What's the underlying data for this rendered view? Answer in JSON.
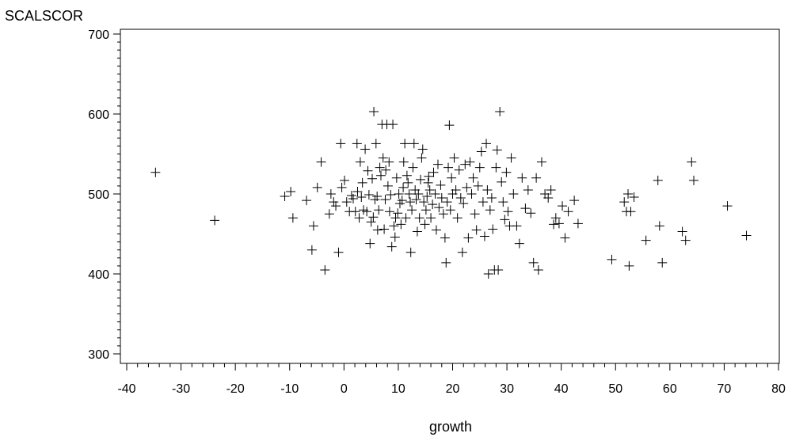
{
  "chart_data": {
    "type": "scatter",
    "title": "",
    "xlabel": "growth",
    "ylabel": "SCALSCOR",
    "xlim": [
      -40,
      80
    ],
    "ylim": [
      300,
      700
    ],
    "x_ticks": [
      -40,
      -30,
      -20,
      -10,
      0,
      10,
      20,
      30,
      40,
      50,
      60,
      70,
      80
    ],
    "y_ticks": [
      300,
      400,
      500,
      600,
      700
    ],
    "marker": "plus",
    "grid": false,
    "legend": "none",
    "points": [
      [
        -34.7,
        527
      ],
      [
        -23.8,
        467
      ],
      [
        -10.9,
        497
      ],
      [
        -9.8,
        503
      ],
      [
        -9.4,
        470
      ],
      [
        -6.9,
        492
      ],
      [
        -5.9,
        430
      ],
      [
        -5.6,
        460
      ],
      [
        -4.9,
        508
      ],
      [
        -4.2,
        540
      ],
      [
        -3.5,
        405
      ],
      [
        -2.7,
        475
      ],
      [
        -2.4,
        500
      ],
      [
        -1.9,
        490
      ],
      [
        -1.5,
        485
      ],
      [
        -1.0,
        427
      ],
      [
        -0.6,
        563
      ],
      [
        -0.4,
        508
      ],
      [
        0.1,
        517
      ],
      [
        0.5,
        490
      ],
      [
        1.0,
        478
      ],
      [
        1.4,
        498
      ],
      [
        1.7,
        494
      ],
      [
        2.1,
        478
      ],
      [
        2.4,
        563
      ],
      [
        2.5,
        503
      ],
      [
        2.8,
        470
      ],
      [
        3.0,
        540
      ],
      [
        3.2,
        496
      ],
      [
        3.4,
        514
      ],
      [
        3.6,
        480
      ],
      [
        3.9,
        556
      ],
      [
        4.2,
        478
      ],
      [
        4.4,
        529
      ],
      [
        4.6,
        499
      ],
      [
        4.8,
        438
      ],
      [
        5.0,
        465
      ],
      [
        5.2,
        519
      ],
      [
        5.4,
        471
      ],
      [
        5.5,
        603
      ],
      [
        5.7,
        493
      ],
      [
        5.9,
        563
      ],
      [
        6.1,
        497
      ],
      [
        6.2,
        455
      ],
      [
        6.4,
        480
      ],
      [
        6.6,
        533
      ],
      [
        6.8,
        523
      ],
      [
        7.0,
        587
      ],
      [
        7.2,
        545
      ],
      [
        7.4,
        456
      ],
      [
        7.6,
        493
      ],
      [
        7.7,
        530
      ],
      [
        7.9,
        587
      ],
      [
        8.1,
        510
      ],
      [
        8.3,
        540
      ],
      [
        8.4,
        478
      ],
      [
        8.6,
        499
      ],
      [
        8.8,
        434
      ],
      [
        9.0,
        587
      ],
      [
        9.2,
        460
      ],
      [
        9.4,
        446
      ],
      [
        9.5,
        470
      ],
      [
        9.7,
        520
      ],
      [
        9.9,
        476
      ],
      [
        10.1,
        500
      ],
      [
        10.3,
        488
      ],
      [
        10.5,
        462
      ],
      [
        10.7,
        492
      ],
      [
        10.9,
        508
      ],
      [
        11.0,
        540
      ],
      [
        11.2,
        563
      ],
      [
        11.4,
        470
      ],
      [
        11.6,
        523
      ],
      [
        11.8,
        514
      ],
      [
        12.0,
        500
      ],
      [
        12.2,
        490
      ],
      [
        12.3,
        427
      ],
      [
        12.5,
        480
      ],
      [
        12.7,
        533
      ],
      [
        12.9,
        563
      ],
      [
        13.1,
        505
      ],
      [
        13.3,
        493
      ],
      [
        13.5,
        453
      ],
      [
        13.7,
        500
      ],
      [
        13.9,
        470
      ],
      [
        14.1,
        518
      ],
      [
        14.3,
        545
      ],
      [
        14.5,
        556
      ],
      [
        14.7,
        490
      ],
      [
        14.9,
        462
      ],
      [
        15.1,
        480
      ],
      [
        15.3,
        497
      ],
      [
        15.5,
        514
      ],
      [
        15.6,
        522
      ],
      [
        15.8,
        505
      ],
      [
        16.0,
        470
      ],
      [
        16.3,
        487
      ],
      [
        16.5,
        527
      ],
      [
        16.8,
        500
      ],
      [
        17.0,
        455
      ],
      [
        17.3,
        537
      ],
      [
        17.5,
        483
      ],
      [
        17.8,
        511
      ],
      [
        18.0,
        495
      ],
      [
        18.3,
        475
      ],
      [
        18.6,
        445
      ],
      [
        18.8,
        414
      ],
      [
        19.0,
        490
      ],
      [
        19.2,
        533
      ],
      [
        19.4,
        586
      ],
      [
        19.6,
        480
      ],
      [
        19.8,
        520
      ],
      [
        20.0,
        500
      ],
      [
        20.3,
        545
      ],
      [
        20.6,
        505
      ],
      [
        20.9,
        470
      ],
      [
        21.2,
        530
      ],
      [
        21.5,
        495
      ],
      [
        21.8,
        427
      ],
      [
        22.0,
        488
      ],
      [
        22.3,
        537
      ],
      [
        22.6,
        508
      ],
      [
        22.9,
        445
      ],
      [
        23.2,
        540
      ],
      [
        23.5,
        500
      ],
      [
        23.8,
        520
      ],
      [
        24.1,
        475
      ],
      [
        24.4,
        455
      ],
      [
        24.7,
        510
      ],
      [
        25.0,
        533
      ],
      [
        25.3,
        553
      ],
      [
        25.6,
        490
      ],
      [
        25.9,
        447
      ],
      [
        26.2,
        563
      ],
      [
        26.4,
        505
      ],
      [
        26.6,
        400
      ],
      [
        26.9,
        480
      ],
      [
        27.2,
        495
      ],
      [
        27.4,
        456
      ],
      [
        27.7,
        405
      ],
      [
        28.0,
        533
      ],
      [
        28.2,
        555
      ],
      [
        28.4,
        405
      ],
      [
        28.7,
        603
      ],
      [
        29.0,
        515
      ],
      [
        29.3,
        490
      ],
      [
        29.6,
        468
      ],
      [
        29.9,
        527
      ],
      [
        30.2,
        478
      ],
      [
        30.5,
        460
      ],
      [
        30.8,
        545
      ],
      [
        31.2,
        500
      ],
      [
        31.8,
        460
      ],
      [
        32.3,
        438
      ],
      [
        32.8,
        520
      ],
      [
        33.4,
        482
      ],
      [
        33.9,
        505
      ],
      [
        34.4,
        476
      ],
      [
        34.9,
        414
      ],
      [
        35.4,
        520
      ],
      [
        35.8,
        405
      ],
      [
        36.4,
        540
      ],
      [
        37.0,
        500
      ],
      [
        37.6,
        495
      ],
      [
        38.1,
        505
      ],
      [
        38.6,
        462
      ],
      [
        39.0,
        470
      ],
      [
        39.6,
        463
      ],
      [
        40.2,
        485
      ],
      [
        40.7,
        445
      ],
      [
        41.3,
        478
      ],
      [
        42.4,
        492
      ],
      [
        43.1,
        463
      ],
      [
        49.3,
        418
      ],
      [
        51.6,
        490
      ],
      [
        52.0,
        478
      ],
      [
        52.3,
        500
      ],
      [
        52.5,
        410
      ],
      [
        52.8,
        478
      ],
      [
        53.4,
        496
      ],
      [
        55.6,
        442
      ],
      [
        57.8,
        517
      ],
      [
        58.1,
        460
      ],
      [
        58.6,
        414
      ],
      [
        62.3,
        453
      ],
      [
        62.9,
        442
      ],
      [
        64.0,
        540
      ],
      [
        64.4,
        517
      ],
      [
        70.6,
        485
      ],
      [
        74.1,
        448
      ]
    ]
  }
}
